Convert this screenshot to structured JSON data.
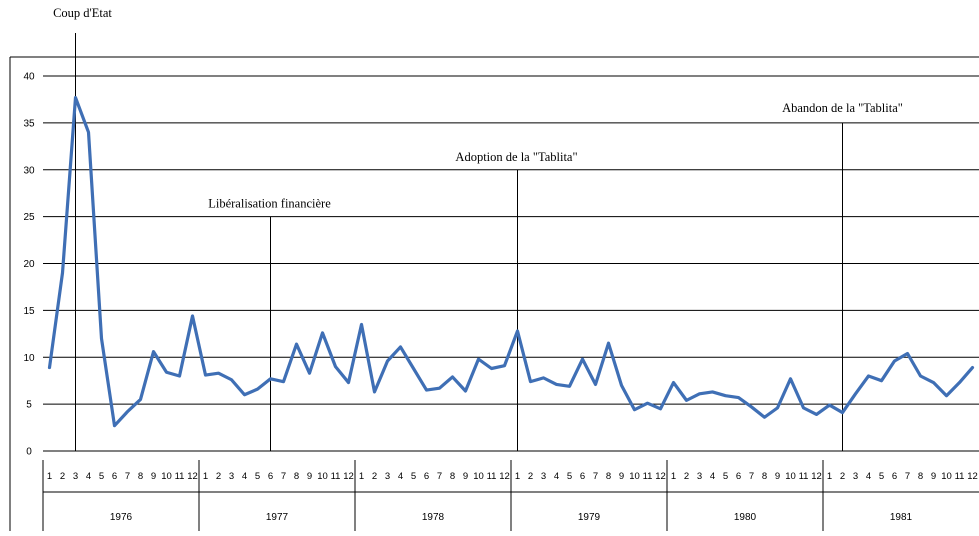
{
  "chart_data": {
    "type": "line",
    "title": "",
    "xlabel": "",
    "ylabel": "",
    "ylim": [
      0,
      40
    ],
    "y_ticks": [
      "0",
      "5",
      "10",
      "15",
      "20",
      "25",
      "30",
      "35",
      "40"
    ],
    "grid": true,
    "line_color": "#3f6fb5",
    "years": [
      "1976",
      "1977",
      "1978",
      "1979",
      "1980",
      "1981"
    ],
    "months": [
      "1",
      "2",
      "3",
      "4",
      "5",
      "6",
      "7",
      "8",
      "9",
      "10",
      "11",
      "12"
    ],
    "series": [
      {
        "values": [
          8.9,
          19,
          37.7,
          34,
          12,
          2.7,
          4.2,
          5.5,
          10.6,
          8.4,
          8,
          14.4,
          8.1,
          8.3,
          7.6,
          6,
          6.6,
          7.7,
          7.4,
          11.4,
          8.3,
          12.6,
          9,
          7.3,
          13.5,
          6.3,
          9.6,
          11.1,
          8.8,
          6.5,
          6.7,
          7.9,
          6.4,
          9.8,
          8.8,
          9.1,
          12.8,
          7.4,
          7.8,
          7.1,
          6.9,
          9.8,
          7.1,
          11.5,
          7,
          4.4,
          5.1,
          4.5,
          7.3,
          5.4,
          6.1,
          6.3,
          5.9,
          5.7,
          4.7,
          3.6,
          4.6,
          7.7,
          4.6,
          3.9,
          4.9,
          4.1,
          6.1,
          8,
          7.5,
          9.6,
          10.4,
          8,
          7.3,
          5.9,
          7.3,
          8.9
        ]
      }
    ],
    "events": [
      {
        "label": "Coup d'Etat",
        "year_index": 0,
        "month": 3,
        "line_top_value": 44
      },
      {
        "label": "Libéralisation financière",
        "year_index": 1,
        "month": 6,
        "line_top_value": 25
      },
      {
        "label": "Adoption de la \"Tablita\"",
        "year_index": 3,
        "month": 1,
        "line_top_value": 30
      },
      {
        "label": "Abandon de la \"Tablita\"",
        "year_index": 5,
        "month": 2,
        "line_top_value": 35
      }
    ]
  }
}
